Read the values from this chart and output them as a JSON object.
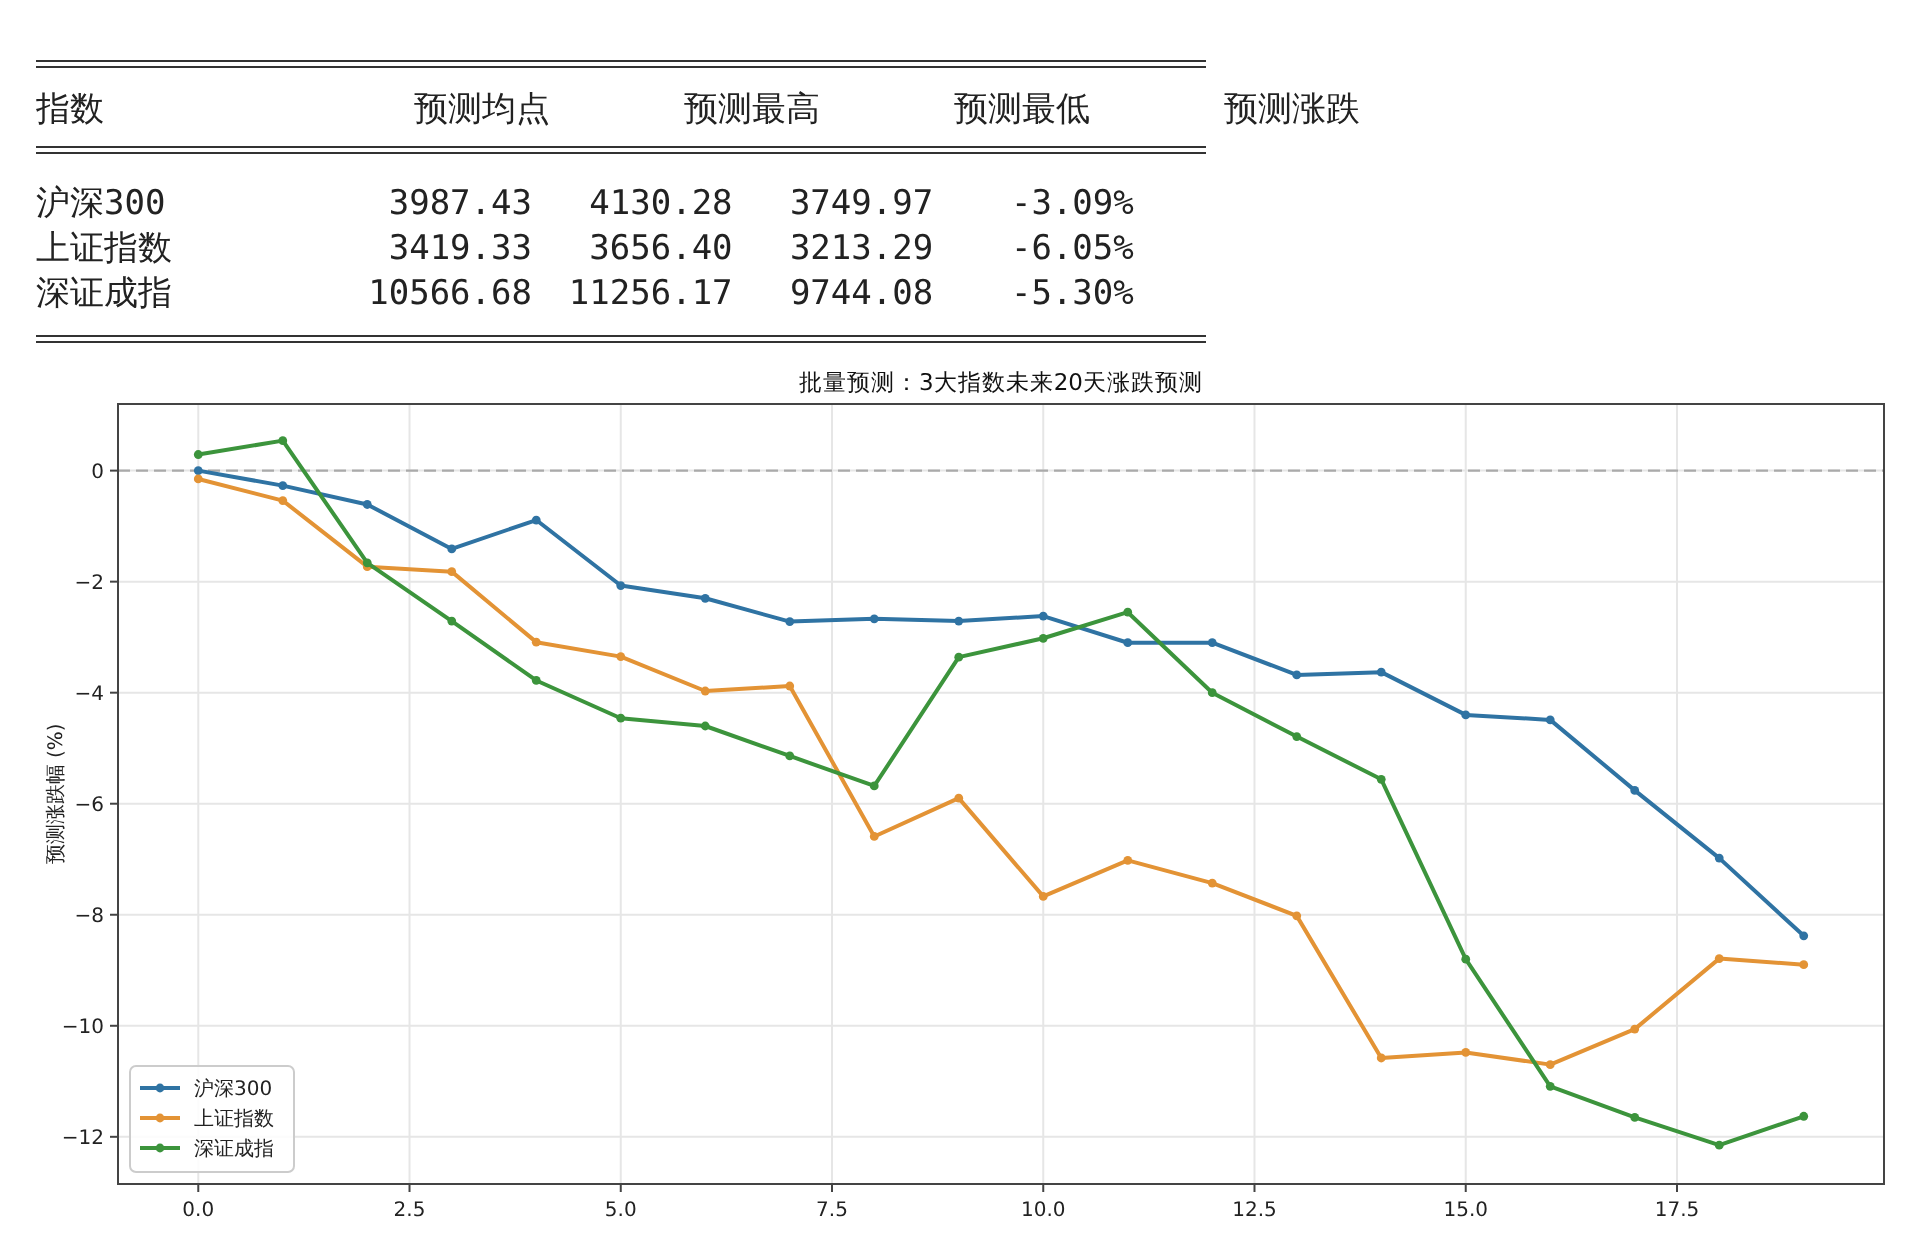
{
  "chart_data": [
    {
      "type": "other",
      "categories": [
        "指数",
        "预测均点",
        "预测最高",
        "预测最低",
        "预测涨跌"
      ],
      "y_categories": [
        "沪深300",
        "上证指数",
        "深证成指"
      ],
      "cell_labels": [
        [
          "3987.43",
          "4130.28",
          "3749.97",
          "-3.09%"
        ],
        [
          "3419.33",
          "3656.40",
          "3213.29",
          "-6.05%"
        ],
        [
          "10566.68",
          "11256.17",
          "9744.08",
          "-5.30%"
        ]
      ]
    },
    {
      "type": "line",
      "title": "批量预测：3大指数未来20天涨跌预测",
      "ylabel": "预测涨跌幅 (%)",
      "x": [
        0,
        1,
        2,
        3,
        4,
        5,
        6,
        7,
        8,
        9,
        10,
        11,
        12,
        13,
        14,
        15,
        16,
        17,
        18,
        19
      ],
      "series": [
        {
          "name": "沪深300",
          "color": "#2f73a3",
          "values": [
            0.0,
            -0.27,
            -0.61,
            -1.41,
            -0.89,
            -2.07,
            -2.3,
            -2.72,
            -2.67,
            -2.71,
            -2.62,
            -3.1,
            -3.1,
            -3.68,
            -3.63,
            -4.4,
            -4.49,
            -5.76,
            -6.98,
            -8.38
          ]
        },
        {
          "name": "上证指数",
          "color": "#e39335",
          "values": [
            -0.15,
            -0.54,
            -1.73,
            -1.82,
            -3.09,
            -3.35,
            -3.97,
            -3.88,
            -6.59,
            -5.9,
            -7.67,
            -7.02,
            -7.43,
            -8.02,
            -10.58,
            -10.48,
            -10.7,
            -10.06,
            -8.79,
            -8.9
          ]
        },
        {
          "name": "深证成指",
          "color": "#3c943c",
          "values": [
            0.29,
            0.54,
            -1.66,
            -2.71,
            -3.78,
            -4.46,
            -4.6,
            -5.14,
            -5.68,
            -3.36,
            -3.02,
            -2.55,
            -4.0,
            -4.79,
            -5.56,
            -8.8,
            -11.09,
            -11.65,
            -12.15,
            -11.63
          ]
        }
      ],
      "xlim": [
        -0.95,
        19.95
      ],
      "xticks": [
        {
          "value": 0,
          "label": "0.0"
        },
        2.5,
        {
          "value": 5,
          "label": "5.0"
        },
        7.5,
        {
          "value": 10,
          "label": "10.0"
        },
        12.5,
        {
          "value": 15,
          "label": "15.0"
        },
        17.5
      ],
      "ylim": [
        -12.85,
        1.2
      ],
      "yticks": [
        {
          "value": -12,
          "label": "−12"
        },
        {
          "value": -10,
          "label": "−10"
        },
        {
          "value": -8,
          "label": "−8"
        },
        {
          "value": -6,
          "label": "−6"
        },
        {
          "value": -4,
          "label": "−4"
        },
        {
          "value": -2,
          "label": "−2"
        },
        0
      ],
      "ref_lines": [
        {
          "axis": "y",
          "value": 0,
          "color": "#aaaaaa",
          "line_style": "dashed"
        }
      ],
      "grid": true,
      "legend": "bottom left",
      "marker": "circle",
      "line_style": "solid"
    }
  ]
}
